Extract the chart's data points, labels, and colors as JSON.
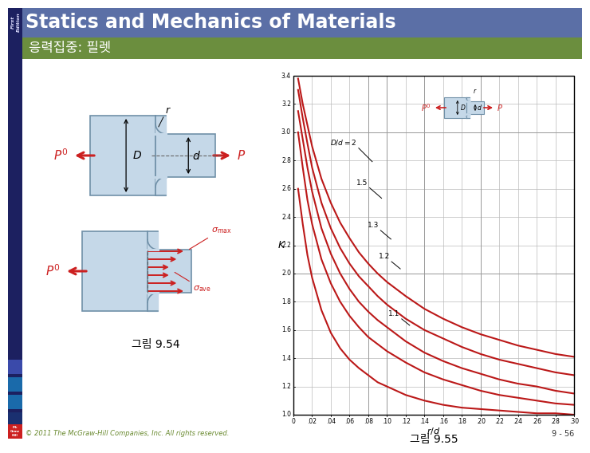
{
  "title": "Statics and Mechanics of Materials",
  "subtitle": "응력집중: 필렛",
  "header_bg_color": "#5b6fa6",
  "subheader_bg_color": "#6b8e3e",
  "footer_text": "© 2011 The McGraw-Hill Companies, Inc. All rights reserved.",
  "page_num": "9 - 56",
  "caption_left": "그림 9.54",
  "caption_right": "그림 9.55",
  "sidebar_color": "#1c2060",
  "arrow_color": "#cc2020",
  "fillet_fill": "#c5d8e8",
  "fillet_edge": "#7090a8",
  "body_bg": "#ffffff",
  "curve_color": "#bb1818",
  "grid_color": "#bbbbbb",
  "x_min": 0.0,
  "x_max": 0.3,
  "y_min": 1.0,
  "y_max": 3.4,
  "curves": {
    "2": {
      "r_d": [
        0.005,
        0.01,
        0.015,
        0.02,
        0.03,
        0.04,
        0.05,
        0.06,
        0.07,
        0.08,
        0.09,
        0.1,
        0.12,
        0.14,
        0.16,
        0.18,
        0.2,
        0.22,
        0.24,
        0.26,
        0.28,
        0.3
      ],
      "K": [
        3.38,
        3.2,
        3.05,
        2.9,
        2.67,
        2.5,
        2.36,
        2.25,
        2.15,
        2.07,
        2.0,
        1.94,
        1.84,
        1.75,
        1.68,
        1.62,
        1.57,
        1.53,
        1.49,
        1.46,
        1.43,
        1.41
      ]
    },
    "1.5": {
      "r_d": [
        0.005,
        0.01,
        0.015,
        0.02,
        0.03,
        0.04,
        0.05,
        0.06,
        0.07,
        0.08,
        0.09,
        0.1,
        0.12,
        0.14,
        0.16,
        0.18,
        0.2,
        0.22,
        0.24,
        0.26,
        0.28,
        0.3
      ],
      "K": [
        3.3,
        3.1,
        2.92,
        2.75,
        2.5,
        2.32,
        2.18,
        2.07,
        1.98,
        1.91,
        1.84,
        1.78,
        1.68,
        1.6,
        1.54,
        1.48,
        1.43,
        1.39,
        1.36,
        1.33,
        1.3,
        1.28
      ]
    },
    "1.3": {
      "r_d": [
        0.005,
        0.01,
        0.015,
        0.02,
        0.03,
        0.04,
        0.05,
        0.06,
        0.07,
        0.08,
        0.09,
        0.1,
        0.12,
        0.14,
        0.16,
        0.18,
        0.2,
        0.22,
        0.24,
        0.26,
        0.28,
        0.3
      ],
      "K": [
        3.15,
        2.95,
        2.75,
        2.58,
        2.32,
        2.14,
        2.0,
        1.89,
        1.8,
        1.73,
        1.67,
        1.62,
        1.52,
        1.44,
        1.38,
        1.33,
        1.29,
        1.25,
        1.22,
        1.2,
        1.17,
        1.15
      ]
    },
    "1.2": {
      "r_d": [
        0.005,
        0.01,
        0.015,
        0.02,
        0.03,
        0.04,
        0.05,
        0.06,
        0.07,
        0.08,
        0.09,
        0.1,
        0.12,
        0.14,
        0.16,
        0.18,
        0.2,
        0.22,
        0.24,
        0.26,
        0.28,
        0.3
      ],
      "K": [
        3.0,
        2.75,
        2.52,
        2.35,
        2.1,
        1.93,
        1.8,
        1.7,
        1.62,
        1.55,
        1.5,
        1.45,
        1.37,
        1.3,
        1.25,
        1.21,
        1.17,
        1.14,
        1.12,
        1.1,
        1.08,
        1.07
      ]
    },
    "1.1": {
      "r_d": [
        0.005,
        0.01,
        0.015,
        0.02,
        0.03,
        0.04,
        0.05,
        0.06,
        0.07,
        0.08,
        0.09,
        0.1,
        0.12,
        0.14,
        0.16,
        0.18,
        0.2,
        0.22,
        0.24,
        0.26,
        0.28,
        0.3
      ],
      "K": [
        2.6,
        2.35,
        2.13,
        1.97,
        1.74,
        1.58,
        1.47,
        1.39,
        1.33,
        1.28,
        1.23,
        1.2,
        1.14,
        1.1,
        1.07,
        1.05,
        1.04,
        1.03,
        1.02,
        1.01,
        1.01,
        1.0
      ]
    }
  }
}
